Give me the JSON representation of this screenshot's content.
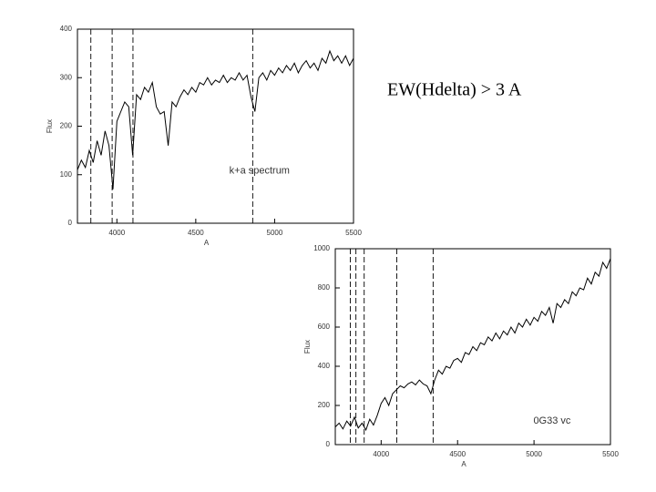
{
  "slide_text": "EW(Hdelta) > 3 A",
  "chart_data": [
    {
      "type": "line",
      "annotation": "k+a spectrum",
      "x_label": "A",
      "y_label": "Flux",
      "xlim": [
        3750,
        5500
      ],
      "xticks": [
        4000,
        4500,
        5000,
        5500
      ],
      "ylim": [
        0,
        400
      ],
      "yticks": [
        0,
        100,
        200,
        300,
        400
      ],
      "vlines": [
        3835,
        3970,
        4102,
        4861
      ],
      "color": "#000000",
      "x": [
        3750,
        3775,
        3800,
        3825,
        3850,
        3875,
        3900,
        3925,
        3950,
        3975,
        4000,
        4025,
        4050,
        4075,
        4100,
        4125,
        4150,
        4175,
        4200,
        4225,
        4250,
        4275,
        4300,
        4325,
        4350,
        4375,
        4400,
        4425,
        4450,
        4475,
        4500,
        4525,
        4550,
        4575,
        4600,
        4625,
        4650,
        4675,
        4700,
        4725,
        4750,
        4775,
        4800,
        4825,
        4850,
        4875,
        4900,
        4925,
        4950,
        4975,
        5000,
        5025,
        5050,
        5075,
        5100,
        5125,
        5150,
        5175,
        5200,
        5225,
        5250,
        5275,
        5300,
        5325,
        5350,
        5375,
        5400,
        5425,
        5450,
        5475,
        5500
      ],
      "values": [
        110,
        130,
        115,
        150,
        125,
        170,
        140,
        190,
        160,
        70,
        210,
        230,
        250,
        240,
        140,
        265,
        255,
        280,
        270,
        290,
        240,
        225,
        230,
        160,
        250,
        240,
        260,
        275,
        265,
        280,
        270,
        290,
        285,
        300,
        285,
        295,
        290,
        305,
        290,
        300,
        295,
        310,
        295,
        305,
        260,
        230,
        300,
        310,
        295,
        315,
        305,
        320,
        310,
        325,
        315,
        330,
        310,
        325,
        335,
        320,
        330,
        315,
        340,
        330,
        355,
        335,
        345,
        330,
        345,
        325,
        340
      ]
    },
    {
      "type": "line",
      "annotation": "0G33 vc",
      "x_label": "A",
      "y_label": "Flux",
      "xlim": [
        3700,
        5500
      ],
      "xticks": [
        4000,
        4500,
        5000,
        5500
      ],
      "ylim": [
        0,
        1000
      ],
      "yticks": [
        0,
        200,
        400,
        600,
        800,
        1000
      ],
      "vlines": [
        3798,
        3835,
        3889,
        4102,
        4340
      ],
      "color": "#000000",
      "x": [
        3700,
        3725,
        3750,
        3775,
        3800,
        3825,
        3850,
        3875,
        3900,
        3925,
        3950,
        3975,
        4000,
        4025,
        4050,
        4075,
        4100,
        4125,
        4150,
        4175,
        4200,
        4225,
        4250,
        4275,
        4300,
        4325,
        4350,
        4375,
        4400,
        4425,
        4450,
        4475,
        4500,
        4525,
        4550,
        4575,
        4600,
        4625,
        4650,
        4675,
        4700,
        4725,
        4750,
        4775,
        4800,
        4825,
        4850,
        4875,
        4900,
        4925,
        4950,
        4975,
        5000,
        5025,
        5050,
        5075,
        5100,
        5125,
        5150,
        5175,
        5200,
        5225,
        5250,
        5275,
        5300,
        5325,
        5350,
        5375,
        5400,
        5425,
        5450,
        5475,
        5500
      ],
      "values": [
        90,
        110,
        80,
        120,
        95,
        140,
        85,
        110,
        75,
        130,
        100,
        150,
        210,
        240,
        200,
        260,
        280,
        300,
        290,
        310,
        320,
        305,
        330,
        310,
        300,
        260,
        330,
        380,
        360,
        400,
        390,
        430,
        440,
        420,
        470,
        460,
        500,
        480,
        520,
        510,
        550,
        530,
        570,
        540,
        580,
        560,
        600,
        570,
        620,
        600,
        640,
        610,
        650,
        630,
        680,
        660,
        700,
        620,
        720,
        700,
        740,
        720,
        780,
        760,
        800,
        790,
        850,
        820,
        880,
        860,
        930,
        900,
        950
      ]
    }
  ]
}
